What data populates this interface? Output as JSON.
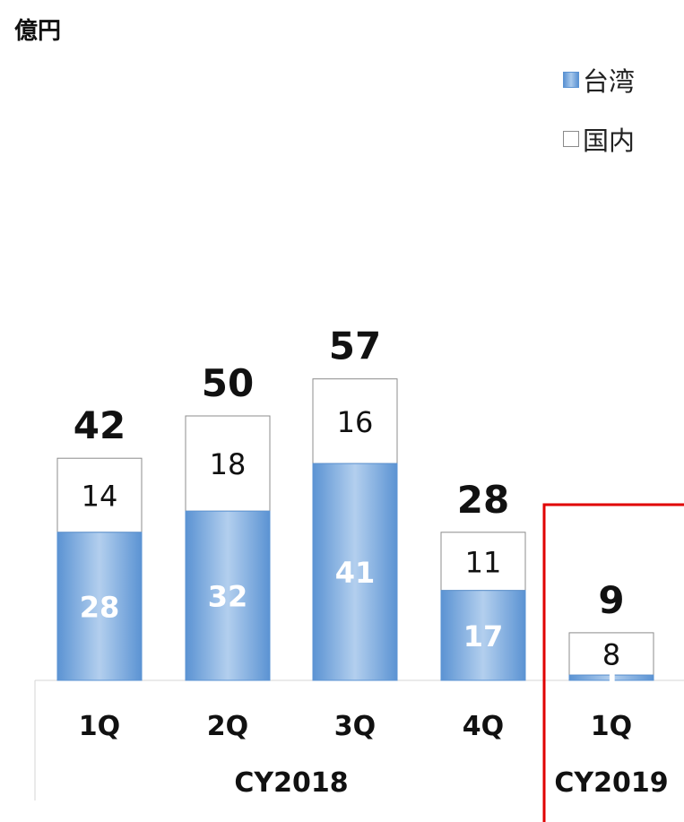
{
  "unit_label": "億円",
  "legend": {
    "taiwan": "台湾",
    "domestic": "国内"
  },
  "colors": {
    "taiwan": "#5b93d3",
    "taiwan_light": "#b3cfee",
    "domestic": "#ffffff",
    "highlight": "#e00000"
  },
  "chart_data": {
    "type": "bar",
    "stacked": true,
    "ylabel": "億円",
    "categories": [
      "1Q",
      "2Q",
      "3Q",
      "4Q",
      "1Q"
    ],
    "groups": [
      {
        "label": "CY2018",
        "categories": [
          "1Q",
          "2Q",
          "3Q",
          "4Q"
        ]
      },
      {
        "label": "CY2019",
        "categories": [
          "1Q"
        ],
        "highlighted": true
      }
    ],
    "series": [
      {
        "name": "台湾",
        "values": [
          28,
          32,
          41,
          17,
          1
        ]
      },
      {
        "name": "国内",
        "values": [
          14,
          18,
          16,
          11,
          8
        ]
      }
    ],
    "totals": [
      42,
      50,
      57,
      28,
      9
    ],
    "legend_position": "top-right"
  }
}
